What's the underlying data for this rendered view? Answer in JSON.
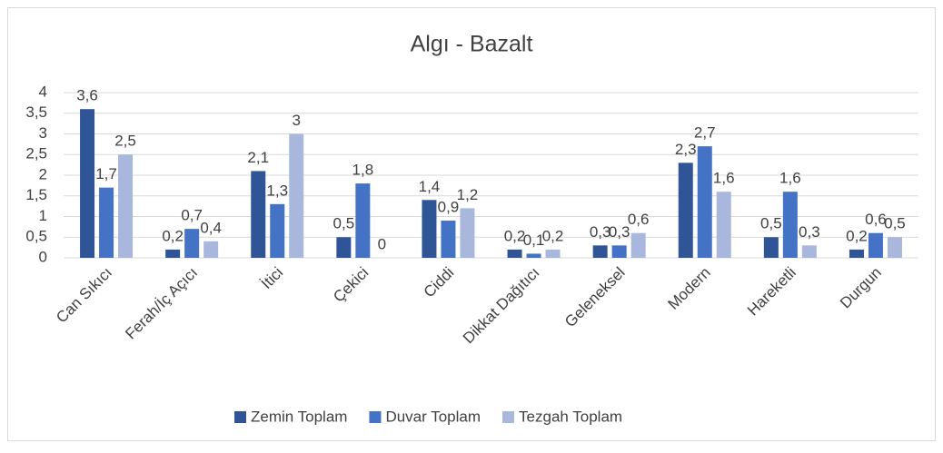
{
  "chart_data": {
    "type": "bar",
    "title": "Algı - Bazalt",
    "categories": [
      "Can Sıkıcı",
      "Ferah/İç Açıcı",
      "İtici",
      "Çekici",
      "Ciddi",
      "Dikkat Dağıtıcı",
      "Geleneksel",
      "Modern",
      "Hareketli",
      "Durgun"
    ],
    "series": [
      {
        "name": "Zemin Toplam",
        "color": "#2f5597",
        "values": [
          3.6,
          0.2,
          2.1,
          0.5,
          1.4,
          0.2,
          0.3,
          2.3,
          0.5,
          0.2
        ],
        "value_labels": [
          "3,6",
          "0,2",
          "2,1",
          "0,5",
          "1,4",
          "0,2",
          "0,3",
          "2,3",
          "0,5",
          "0,2"
        ]
      },
      {
        "name": "Duvar Toplam",
        "color": "#4472c4",
        "values": [
          1.7,
          0.7,
          1.3,
          1.8,
          0.9,
          0.1,
          0.3,
          2.7,
          1.6,
          0.6
        ],
        "value_labels": [
          "1,7",
          "0,7",
          "1,3",
          "1,8",
          "0,9",
          "0,1",
          "0,3",
          "2,7",
          "1,6",
          "0,6"
        ]
      },
      {
        "name": "Tezgah Toplam",
        "color": "#a9b7dc",
        "values": [
          2.5,
          0.4,
          3,
          0,
          1.2,
          0.2,
          0.6,
          1.6,
          0.3,
          0.5
        ],
        "value_labels": [
          "2,5",
          "0,4",
          "3",
          "0",
          "1,2",
          "0,2",
          "0,6",
          "1,6",
          "0,3",
          "0,5"
        ]
      }
    ],
    "ylim": [
      0,
      4
    ],
    "yticks": [
      0,
      {
        "value": 0.5,
        "label": "0,5"
      },
      1,
      {
        "value": 1.5,
        "label": "1,5"
      },
      2,
      {
        "value": 2.5,
        "label": "2,5"
      },
      3,
      {
        "value": 3.5,
        "label": "3,5"
      },
      4
    ],
    "grid": true,
    "legend": "bottom"
  }
}
